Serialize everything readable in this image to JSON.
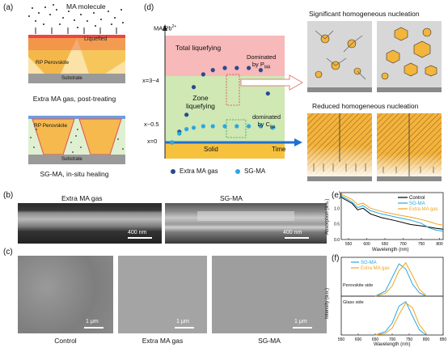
{
  "panels": {
    "a": {
      "label": "(a)",
      "ma_molecule": "MA molecule",
      "liquefied": "Liquefied",
      "rp_perovskite_top": "RP Perovskite",
      "substrate_top": "Substrate",
      "caption_top": "Extra MA gas, post-treating",
      "rp_perovskite_bottom": "RP Perovskite",
      "substrate_bottom": "Substrate",
      "caption_bottom": "SG-MA, in-situ healing"
    },
    "b": {
      "label": "(b)",
      "left_title": "Extra MA gas",
      "right_title": "SG-MA",
      "scale_left": "400 nm",
      "scale_right": "400 nm"
    },
    "c": {
      "label": "(c)",
      "scale": "1 μm",
      "captions": [
        "Control",
        "Extra MA gas",
        "SG-MA"
      ]
    },
    "d": {
      "label": "(d)",
      "y_axis": "MA/Pb",
      "y_axis_sup": "2+",
      "total_liquefying": "Total liquefying",
      "zone_liquefying_1": "Zone",
      "zone_liquefying_2": "liquefying",
      "solid": "Solid",
      "time": "Time",
      "dominated_pma_1": "Dominated",
      "dominated_pma_2": "by P",
      "dominated_pma_sub": "MA",
      "dominated_cba_1": "dominated",
      "dominated_cba_2": "by C",
      "dominated_cba_sub": "BA",
      "ytick_high": "x=3~4",
      "ytick_mid": "x~0.5",
      "ytick_low": "x=0",
      "legend": [
        "Extra MA gas",
        "SG-MA"
      ],
      "colors": {
        "extra": "#2a4a8c",
        "sg": "#29a8e0",
        "pink": "#f7b9b9",
        "green": "#cfe8b4",
        "yellow": "#f6c23e",
        "arrow": "#1f6fd0"
      }
    },
    "nucleation": {
      "significant": "Significant homogeneous nucleation",
      "reduced": "Reduced homogeneous nucleation"
    },
    "e": {
      "label": "(e)",
      "ylabel": "Absorption (a.u.)",
      "xlabel": "Wavelength (nm)",
      "xticks": [
        "550",
        "600",
        "650",
        "700",
        "750",
        "800"
      ],
      "yticks": [
        "0.0",
        "0.5",
        "1.0"
      ],
      "legend": [
        "Control",
        "SG-MA",
        "Extra MA gas"
      ],
      "colors": [
        "#000000",
        "#29a8e0",
        "#f0a41c"
      ]
    },
    "f": {
      "label": "(f)",
      "ylabel": "Intensity (a.u.)",
      "xlabel": "Wavelength (nm)",
      "xticks": [
        "550",
        "600",
        "650",
        "700",
        "750",
        "800",
        "850"
      ],
      "yticks": [
        "0.0",
        "0.4",
        "0.8"
      ],
      "legend": [
        "SG-MA",
        "Extra MA gas"
      ],
      "sub_top": "Perovskite side",
      "sub_bottom": "Glass side",
      "colors": [
        "#29a8e0",
        "#f0a41c"
      ]
    }
  },
  "chart_data": [
    {
      "type": "scatter",
      "xlabel": "Time",
      "ylabel": "MA/Pb2+",
      "series": [
        {
          "name": "Extra MA gas",
          "x": [
            0.3,
            0.6,
            0.9,
            1.2,
            1.6,
            2.0,
            2.5,
            3.0,
            3.5,
            4.0,
            4.3
          ],
          "y": [
            0.0,
            0.5,
            1.3,
            2.6,
            3.2,
            3.4,
            3.5,
            3.5,
            3.5,
            3.4,
            2.3
          ]
        },
        {
          "name": "SG-MA",
          "x": [
            0.3,
            0.6,
            0.9,
            1.2,
            1.6,
            2.0,
            2.5,
            3.0,
            3.5,
            4.0,
            4.5
          ],
          "y": [
            0.0,
            0.3,
            0.45,
            0.5,
            0.55,
            0.55,
            0.55,
            0.55,
            0.55,
            0.55,
            0.5
          ]
        }
      ]
    },
    {
      "type": "line",
      "xlabel": "Wavelength (nm)",
      "ylabel": "Absorption (a.u.)",
      "xlim": [
        530,
        810
      ],
      "ylim": [
        0,
        1.5
      ],
      "series": [
        {
          "name": "Control",
          "x": [
            530,
            560,
            575,
            590,
            610,
            640,
            680,
            720,
            760,
            790,
            810
          ],
          "y": [
            1.35,
            1.15,
            0.95,
            1.0,
            0.82,
            0.7,
            0.6,
            0.48,
            0.42,
            0.36,
            0.33
          ]
        },
        {
          "name": "SG-MA",
          "x": [
            530,
            560,
            575,
            590,
            610,
            640,
            680,
            720,
            750,
            770,
            790,
            810
          ],
          "y": [
            1.4,
            1.2,
            1.02,
            1.08,
            0.92,
            0.82,
            0.72,
            0.62,
            0.52,
            0.38,
            0.3,
            0.27
          ]
        },
        {
          "name": "Extra MA gas",
          "x": [
            530,
            560,
            575,
            590,
            610,
            640,
            680,
            720,
            750,
            770,
            790,
            810
          ],
          "y": [
            1.45,
            1.28,
            1.12,
            1.16,
            1.0,
            0.9,
            0.8,
            0.72,
            0.64,
            0.58,
            0.5,
            0.46
          ]
        }
      ]
    },
    {
      "type": "line",
      "xlabel": "Wavelength (nm)",
      "ylabel": "Intensity (a.u.)",
      "xlim": [
        550,
        850
      ],
      "series": [
        {
          "name": "SG-MA (Perovskite side)",
          "x": [
            650,
            680,
            700,
            720,
            740,
            760,
            780,
            800
          ],
          "y": [
            0.0,
            0.15,
            0.55,
            0.95,
            0.8,
            0.35,
            0.1,
            0.0
          ]
        },
        {
          "name": "Extra MA gas (Perovskite side)",
          "x": [
            650,
            680,
            700,
            720,
            740,
            760,
            780,
            800
          ],
          "y": [
            0.0,
            0.08,
            0.3,
            0.75,
            0.98,
            0.6,
            0.2,
            0.02
          ]
        },
        {
          "name": "SG-MA (Glass side)",
          "x": [
            650,
            680,
            700,
            720,
            740,
            760,
            780,
            800
          ],
          "y": [
            0.0,
            0.1,
            0.35,
            0.85,
            0.98,
            0.55,
            0.15,
            0.0
          ]
        },
        {
          "name": "Extra MA gas (Glass side)",
          "x": [
            650,
            680,
            700,
            720,
            740,
            760,
            780,
            800
          ],
          "y": [
            0.0,
            0.05,
            0.2,
            0.6,
            0.95,
            0.8,
            0.3,
            0.05
          ]
        }
      ]
    }
  ]
}
